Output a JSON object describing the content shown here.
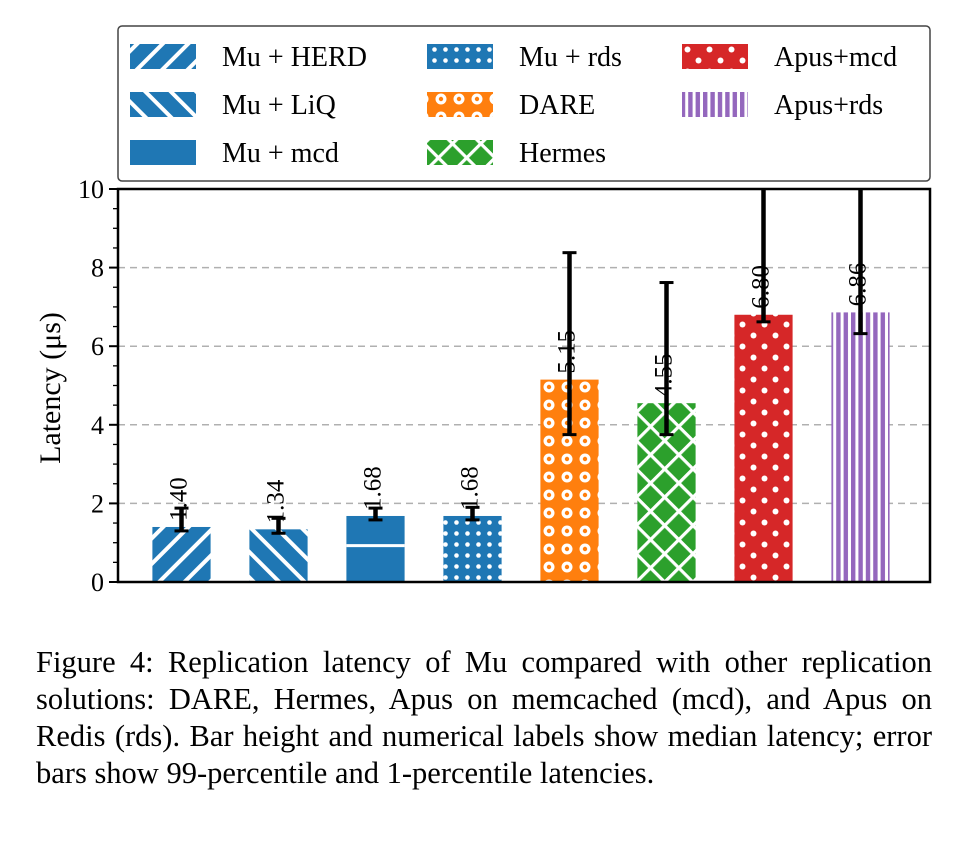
{
  "chart_data": {
    "type": "bar",
    "ylabel": "Latency (μs)",
    "ylim": [
      0,
      10
    ],
    "yticks": [
      "0",
      "2",
      "4",
      "6",
      "8",
      "10"
    ],
    "grid": "horizontal dashed",
    "legend_placement": "top",
    "series": [
      {
        "name": "Mu + HERD",
        "value": 1.4,
        "label": "1.40",
        "err_low": 1.3,
        "err_high": 1.88,
        "color": "#1f77b4",
        "pattern": "diag-right"
      },
      {
        "name": "Mu + LiQ",
        "value": 1.34,
        "label": "1.34",
        "err_low": 1.24,
        "err_high": 1.62,
        "color": "#1f77b4",
        "pattern": "diag-left"
      },
      {
        "name": "Mu + mcd",
        "value": 1.68,
        "label": "1.68",
        "err_low": 1.58,
        "err_high": 1.88,
        "color": "#1f77b4",
        "pattern": "horizontal"
      },
      {
        "name": "Mu + rds",
        "value": 1.68,
        "label": "1.68",
        "err_low": 1.58,
        "err_high": 1.9,
        "color": "#1f77b4",
        "pattern": "small-dots"
      },
      {
        "name": "DARE",
        "value": 5.15,
        "label": "5.15",
        "err_low": 3.75,
        "err_high": 8.38,
        "color": "#ff7f0e",
        "pattern": "rings"
      },
      {
        "name": "Hermes",
        "value": 4.55,
        "label": "4.55",
        "err_low": 3.75,
        "err_high": 7.62,
        "color": "#2ca02c",
        "pattern": "crosshatch"
      },
      {
        "name": "Apus+mcd",
        "value": 6.8,
        "label": "6.80",
        "err_low": 6.62,
        "err_high": 10.0,
        "color": "#d62728",
        "pattern": "big-dots"
      },
      {
        "name": "Apus+rds",
        "value": 6.86,
        "label": "6.86",
        "err_low": 6.32,
        "err_high": 10.0,
        "color": "#9467bd",
        "pattern": "vertical"
      }
    ]
  },
  "caption": "Figure 4: Replication latency of Mu compared with other replication solutions: DARE, Hermes, Apus on memcached (mcd), and Apus on Redis (rds). Bar height and numerical labels show median latency; error bars show 99-percentile and 1-percentile latencies."
}
